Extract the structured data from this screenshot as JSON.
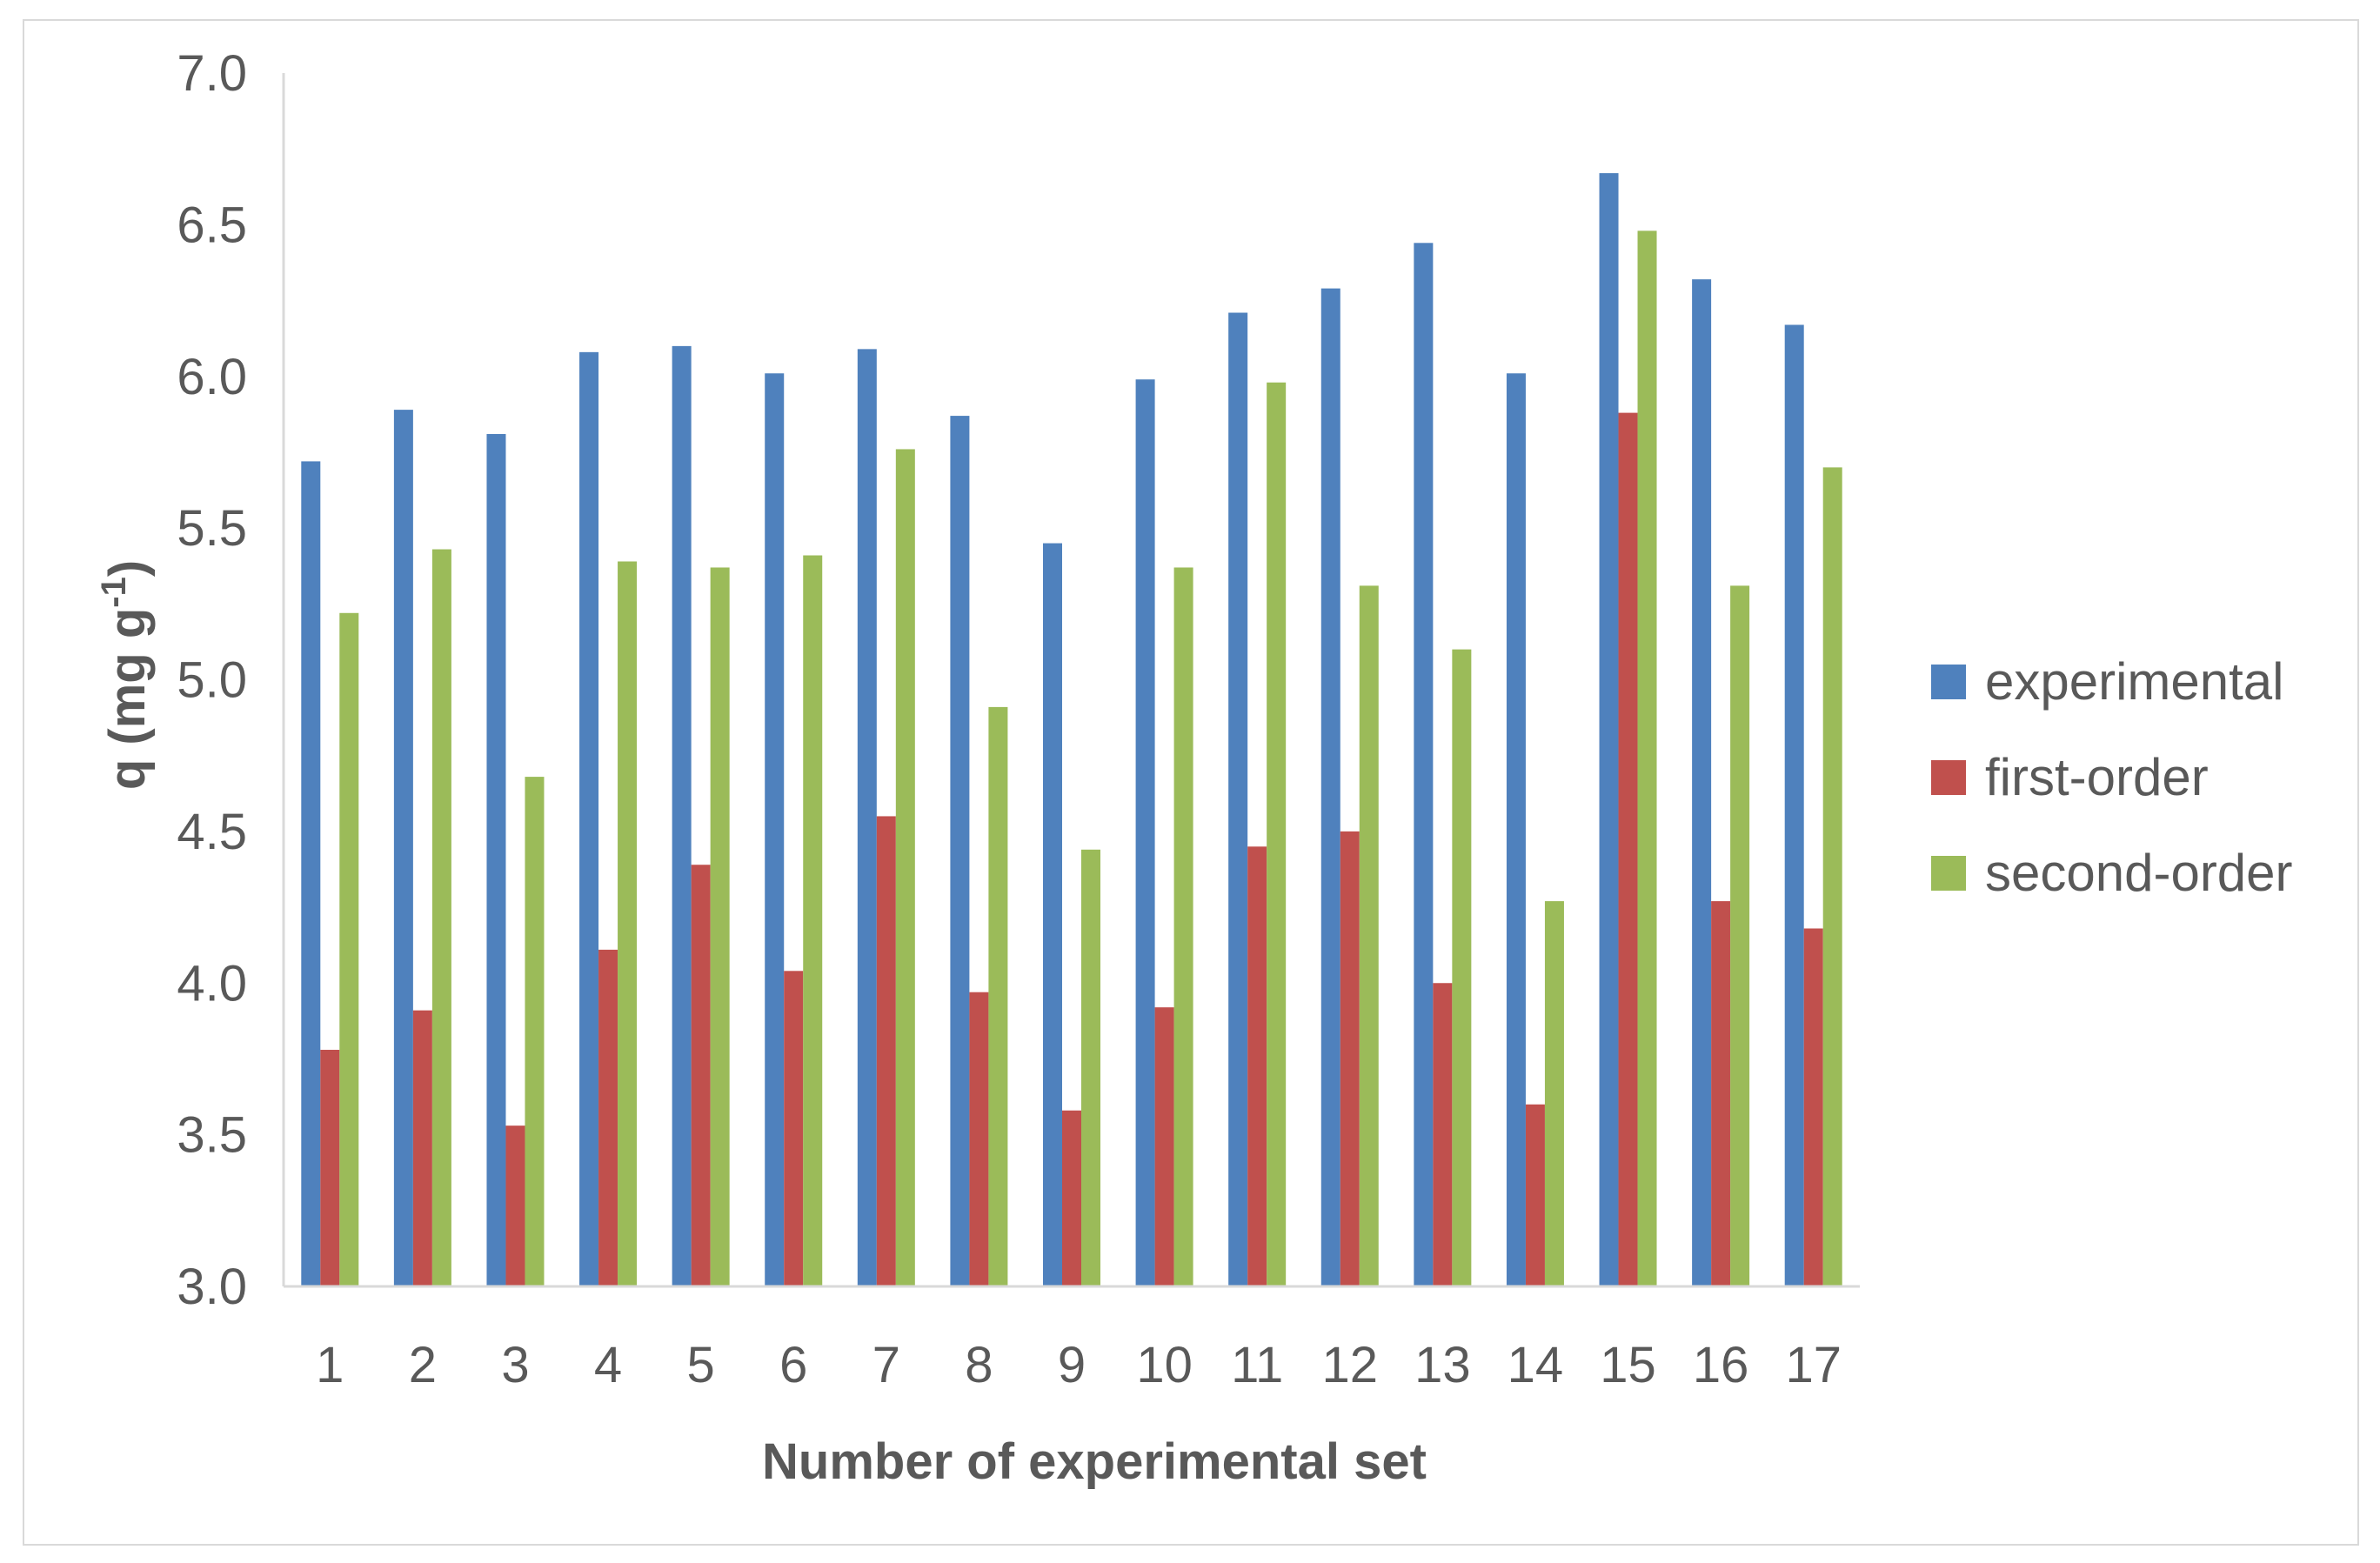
{
  "chart_data": {
    "type": "bar",
    "title": "",
    "xlabel": "Number of experimental set",
    "ylabel": "q (mg g",
    "ylabel_superscript": "-1",
    "ylabel_close": ")",
    "ylim": [
      3.0,
      7.0
    ],
    "yticks": [
      "3.0",
      "3.5",
      "4.0",
      "4.5",
      "5.0",
      "5.5",
      "6.0",
      "6.5",
      "7.0"
    ],
    "grid": false,
    "legend_position": "right",
    "categories": [
      "1",
      "2",
      "3",
      "4",
      "5",
      "6",
      "7",
      "8",
      "9",
      "10",
      "11",
      "12",
      "13",
      "14",
      "15",
      "16",
      "17"
    ],
    "series": [
      {
        "name": "experimental",
        "color": "#4f81bd",
        "values": [
          5.72,
          5.89,
          5.81,
          6.08,
          6.1,
          6.01,
          6.09,
          5.87,
          5.45,
          5.99,
          6.21,
          6.29,
          6.44,
          6.01,
          6.67,
          6.32,
          6.17
        ]
      },
      {
        "name": "first-order",
        "color": "#c0504d",
        "values": [
          3.78,
          3.91,
          3.53,
          4.11,
          4.39,
          4.04,
          4.55,
          3.97,
          3.58,
          3.92,
          4.45,
          4.5,
          4.0,
          3.6,
          5.88,
          4.27,
          4.18
        ]
      },
      {
        "name": "second-order",
        "color": "#9bbb59",
        "values": [
          5.22,
          5.43,
          4.68,
          5.39,
          5.37,
          5.41,
          5.76,
          4.91,
          4.44,
          5.37,
          5.98,
          5.31,
          5.1,
          4.27,
          6.48,
          5.31,
          5.7
        ]
      }
    ]
  }
}
